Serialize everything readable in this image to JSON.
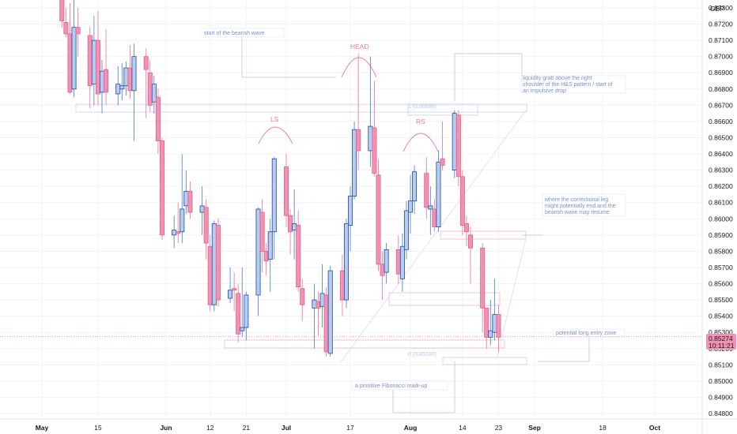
{
  "currency_label": "GBP",
  "last_price": "0.85274",
  "countdown": "10:11:21",
  "colors": {
    "bull_fill": "#b7ccf0",
    "bull_border": "#1c4b9e",
    "bear_fill": "#f391b3",
    "bear_border": "#e0608c",
    "annotation": "#7b8fd1",
    "pattern": "#ef7aa0",
    "price_tag": "#f391b3",
    "grid": "#f3f3f3"
  },
  "annotations": {
    "bearish_start": "start of the bearish wave",
    "liquidity_1": "liquidity grab above the right",
    "liquidity_2": "shoulder of the H&S pattern / start of",
    "liquidity_3": "an impulsive drop",
    "corrective_1": "where the correctional leg",
    "corrective_2": "might potentially end and the",
    "corrective_3": "bearish wave may resume",
    "long_zone": "potential long entry zone",
    "fib_note": "a primitive Fibonacci mark-up",
    "head": "HEAD",
    "ls": "LS",
    "rs": "RS",
    "fib_top": "1 (0.86688)",
    "fib_bottom": "0 (0.85160)"
  },
  "chart_data": {
    "type": "candlestick",
    "symbol_currency": "GBP",
    "y_ticks": [
      "0.87300",
      "0.87200",
      "0.87100",
      "0.87000",
      "0.86900",
      "0.86800",
      "0.86700",
      "0.86600",
      "0.86500",
      "0.86400",
      "0.86300",
      "0.86200",
      "0.86100",
      "0.86000",
      "0.85900",
      "0.85800",
      "0.85700",
      "0.85600",
      "0.85500",
      "0.85400",
      "0.85300",
      "0.85200",
      "0.85100",
      "0.85000",
      "0.84900",
      "0.84800"
    ],
    "x_ticks": [
      {
        "label": "May",
        "day": 0
      },
      {
        "label": "15",
        "day": 14
      },
      {
        "label": "Jun",
        "day": 31
      },
      {
        "label": "12",
        "day": 42
      },
      {
        "label": "21",
        "day": 51
      },
      {
        "label": "Jul",
        "day": 61
      },
      {
        "label": "17",
        "day": 77
      },
      {
        "label": "Aug",
        "day": 92
      },
      {
        "label": "14",
        "day": 105
      },
      {
        "label": "23",
        "day": 114
      },
      {
        "label": "Sep",
        "day": 123
      },
      {
        "label": "18",
        "day": 140
      },
      {
        "label": "Oct",
        "day": 153
      }
    ],
    "ylim": [
      0.8478,
      0.8735
    ],
    "last_price": 0.85274,
    "candles": [
      {
        "day": 5,
        "o": 0.874,
        "h": 0.8741,
        "l": 0.8718,
        "c": 0.8722
      },
      {
        "day": 6,
        "o": 0.8721,
        "h": 0.873,
        "l": 0.8712,
        "c": 0.8714
      },
      {
        "day": 7,
        "o": 0.8714,
        "h": 0.8733,
        "l": 0.8677,
        "c": 0.8678
      },
      {
        "day": 8,
        "o": 0.868,
        "h": 0.8735,
        "l": 0.8675,
        "c": 0.8718
      },
      {
        "day": 9,
        "o": 0.8718,
        "h": 0.873,
        "l": 0.87,
        "c": 0.8714
      },
      {
        "day": 12,
        "o": 0.8713,
        "h": 0.8718,
        "l": 0.8668,
        "c": 0.8682
      },
      {
        "day": 13,
        "o": 0.8683,
        "h": 0.8725,
        "l": 0.867,
        "c": 0.871
      },
      {
        "day": 14,
        "o": 0.871,
        "h": 0.8728,
        "l": 0.867,
        "c": 0.8677
      },
      {
        "day": 15,
        "o": 0.8678,
        "h": 0.8698,
        "l": 0.8665,
        "c": 0.8691
      },
      {
        "day": 16,
        "o": 0.8692,
        "h": 0.8717,
        "l": 0.867,
        "c": 0.8678
      },
      {
        "day": 19,
        "o": 0.8677,
        "h": 0.8694,
        "l": 0.867,
        "c": 0.8683
      },
      {
        "day": 20,
        "o": 0.868,
        "h": 0.8696,
        "l": 0.8673,
        "c": 0.8682
      },
      {
        "day": 21,
        "o": 0.8682,
        "h": 0.8697,
        "l": 0.8676,
        "c": 0.8693
      },
      {
        "day": 22,
        "o": 0.8693,
        "h": 0.8707,
        "l": 0.8674,
        "c": 0.8679
      },
      {
        "day": 23,
        "o": 0.8679,
        "h": 0.8708,
        "l": 0.8648,
        "c": 0.87
      },
      {
        "day": 26,
        "o": 0.87,
        "h": 0.8705,
        "l": 0.8662,
        "c": 0.8692
      },
      {
        "day": 27,
        "o": 0.869,
        "h": 0.8698,
        "l": 0.8666,
        "c": 0.867
      },
      {
        "day": 28,
        "o": 0.8672,
        "h": 0.8688,
        "l": 0.8665,
        "c": 0.8683
      },
      {
        "day": 29,
        "o": 0.8675,
        "h": 0.868,
        "l": 0.864,
        "c": 0.8648
      },
      {
        "day": 30,
        "o": 0.8648,
        "h": 0.865,
        "l": 0.8587,
        "c": 0.859
      },
      {
        "day": 33,
        "o": 0.859,
        "h": 0.8602,
        "l": 0.8582,
        "c": 0.8593
      },
      {
        "day": 34,
        "o": 0.8592,
        "h": 0.861,
        "l": 0.8585,
        "c": 0.8591
      },
      {
        "day": 35,
        "o": 0.8592,
        "h": 0.864,
        "l": 0.8585,
        "c": 0.8606
      },
      {
        "day": 36,
        "o": 0.8608,
        "h": 0.863,
        "l": 0.8603,
        "c": 0.8617
      },
      {
        "day": 37,
        "o": 0.8617,
        "h": 0.8623,
        "l": 0.86,
        "c": 0.8604
      },
      {
        "day": 40,
        "o": 0.8604,
        "h": 0.862,
        "l": 0.859,
        "c": 0.8608
      },
      {
        "day": 41,
        "o": 0.8607,
        "h": 0.8612,
        "l": 0.8575,
        "c": 0.8585
      },
      {
        "day": 42,
        "o": 0.8583,
        "h": 0.859,
        "l": 0.8543,
        "c": 0.8547
      },
      {
        "day": 43,
        "o": 0.8547,
        "h": 0.8599,
        "l": 0.8543,
        "c": 0.8597
      },
      {
        "day": 44,
        "o": 0.8596,
        "h": 0.86,
        "l": 0.8546,
        "c": 0.855
      },
      {
        "day": 47,
        "o": 0.8551,
        "h": 0.857,
        "l": 0.8548,
        "c": 0.8556
      },
      {
        "day": 48,
        "o": 0.8557,
        "h": 0.8567,
        "l": 0.8543,
        "c": 0.8556
      },
      {
        "day": 49,
        "o": 0.8554,
        "h": 0.856,
        "l": 0.8524,
        "c": 0.8529
      },
      {
        "day": 50,
        "o": 0.8531,
        "h": 0.857,
        "l": 0.8527,
        "c": 0.8533
      },
      {
        "day": 51,
        "o": 0.8533,
        "h": 0.8555,
        "l": 0.8525,
        "c": 0.8553
      },
      {
        "day": 54,
        "o": 0.8553,
        "h": 0.8607,
        "l": 0.854,
        "c": 0.8606
      },
      {
        "day": 55,
        "o": 0.8604,
        "h": 0.8612,
        "l": 0.8567,
        "c": 0.858
      },
      {
        "day": 56,
        "o": 0.858,
        "h": 0.8585,
        "l": 0.8565,
        "c": 0.8574
      },
      {
        "day": 57,
        "o": 0.8575,
        "h": 0.86,
        "l": 0.8555,
        "c": 0.8592
      },
      {
        "day": 58,
        "o": 0.8592,
        "h": 0.8638,
        "l": 0.8575,
        "c": 0.8637
      },
      {
        "day": 61,
        "o": 0.8632,
        "h": 0.864,
        "l": 0.8595,
        "c": 0.8602
      },
      {
        "day": 62,
        "o": 0.8602,
        "h": 0.8606,
        "l": 0.8578,
        "c": 0.8592
      },
      {
        "day": 63,
        "o": 0.8593,
        "h": 0.8618,
        "l": 0.8575,
        "c": 0.8597
      },
      {
        "day": 64,
        "o": 0.8596,
        "h": 0.8605,
        "l": 0.8555,
        "c": 0.8558
      },
      {
        "day": 65,
        "o": 0.8557,
        "h": 0.8563,
        "l": 0.8537,
        "c": 0.8547
      },
      {
        "day": 68,
        "o": 0.8545,
        "h": 0.856,
        "l": 0.852,
        "c": 0.855
      },
      {
        "day": 69,
        "o": 0.8549,
        "h": 0.8555,
        "l": 0.8528,
        "c": 0.8545
      },
      {
        "day": 70,
        "o": 0.8546,
        "h": 0.8572,
        "l": 0.8533,
        "c": 0.8554
      },
      {
        "day": 71,
        "o": 0.8553,
        "h": 0.8558,
        "l": 0.8515,
        "c": 0.8518
      },
      {
        "day": 72,
        "o": 0.8517,
        "h": 0.8571,
        "l": 0.8515,
        "c": 0.8568
      },
      {
        "day": 75,
        "o": 0.8568,
        "h": 0.8578,
        "l": 0.854,
        "c": 0.855
      },
      {
        "day": 76,
        "o": 0.855,
        "h": 0.86,
        "l": 0.8545,
        "c": 0.8597
      },
      {
        "day": 77,
        "o": 0.8596,
        "h": 0.862,
        "l": 0.858,
        "c": 0.8614
      },
      {
        "day": 78,
        "o": 0.8614,
        "h": 0.866,
        "l": 0.8612,
        "c": 0.8655
      },
      {
        "day": 79,
        "o": 0.8655,
        "h": 0.8702,
        "l": 0.863,
        "c": 0.8642
      },
      {
        "day": 82,
        "o": 0.8642,
        "h": 0.87,
        "l": 0.8632,
        "c": 0.8657
      },
      {
        "day": 83,
        "o": 0.8656,
        "h": 0.8685,
        "l": 0.8626,
        "c": 0.8628
      },
      {
        "day": 84,
        "o": 0.8627,
        "h": 0.8637,
        "l": 0.8568,
        "c": 0.8572
      },
      {
        "day": 85,
        "o": 0.8572,
        "h": 0.858,
        "l": 0.855,
        "c": 0.8565
      },
      {
        "day": 86,
        "o": 0.8567,
        "h": 0.8585,
        "l": 0.856,
        "c": 0.8581
      },
      {
        "day": 89,
        "o": 0.8581,
        "h": 0.859,
        "l": 0.856,
        "c": 0.8566
      },
      {
        "day": 90,
        "o": 0.8563,
        "h": 0.8591,
        "l": 0.8555,
        "c": 0.8583
      },
      {
        "day": 91,
        "o": 0.8581,
        "h": 0.8611,
        "l": 0.8575,
        "c": 0.8605
      },
      {
        "day": 92,
        "o": 0.8604,
        "h": 0.8627,
        "l": 0.8591,
        "c": 0.8611
      },
      {
        "day": 93,
        "o": 0.8611,
        "h": 0.8633,
        "l": 0.8603,
        "c": 0.8629
      },
      {
        "day": 96,
        "o": 0.8628,
        "h": 0.8638,
        "l": 0.86,
        "c": 0.8607
      },
      {
        "day": 97,
        "o": 0.8606,
        "h": 0.862,
        "l": 0.859,
        "c": 0.8608
      },
      {
        "day": 98,
        "o": 0.8606,
        "h": 0.8612,
        "l": 0.8592,
        "c": 0.8595
      },
      {
        "day": 99,
        "o": 0.8595,
        "h": 0.8642,
        "l": 0.8592,
        "c": 0.8635
      },
      {
        "day": 100,
        "o": 0.8637,
        "h": 0.866,
        "l": 0.863,
        "c": 0.8633
      },
      {
        "day": 103,
        "o": 0.863,
        "h": 0.8667,
        "l": 0.8625,
        "c": 0.8665
      },
      {
        "day": 104,
        "o": 0.8664,
        "h": 0.8667,
        "l": 0.862,
        "c": 0.8626
      },
      {
        "day": 105,
        "o": 0.8626,
        "h": 0.863,
        "l": 0.859,
        "c": 0.8596
      },
      {
        "day": 106,
        "o": 0.8597,
        "h": 0.8602,
        "l": 0.8583,
        "c": 0.8592
      },
      {
        "day": 107,
        "o": 0.859,
        "h": 0.8595,
        "l": 0.856,
        "c": 0.8582
      },
      {
        "day": 110,
        "o": 0.8582,
        "h": 0.8585,
        "l": 0.853,
        "c": 0.8545
      },
      {
        "day": 111,
        "o": 0.8545,
        "h": 0.8545,
        "l": 0.852,
        "c": 0.8527
      },
      {
        "day": 112,
        "o": 0.8527,
        "h": 0.855,
        "l": 0.8522,
        "c": 0.8531
      },
      {
        "day": 113,
        "o": 0.853,
        "h": 0.8563,
        "l": 0.8525,
        "c": 0.8541
      },
      {
        "day": 114,
        "o": 0.8541,
        "h": 0.8547,
        "l": 0.8518,
        "c": 0.8527
      }
    ]
  }
}
